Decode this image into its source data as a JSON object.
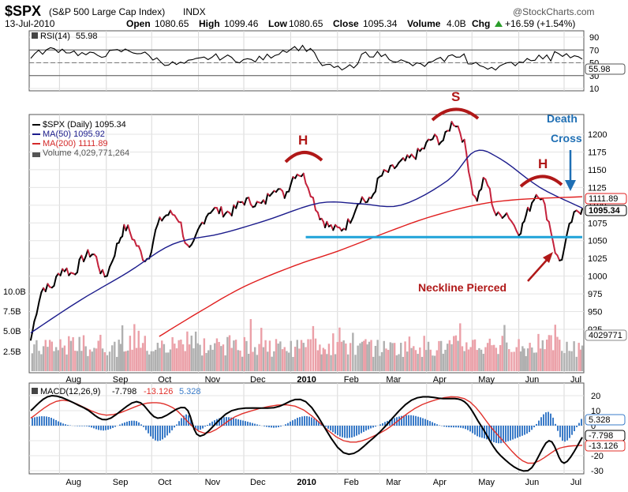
{
  "header": {
    "symbol": "$SPX",
    "name": "(S&P 500 Large Cap Index)",
    "exchange": "INDX",
    "credit": "@StockCharts.com",
    "date": "13-Jul-2010",
    "open_label": "Open",
    "open": "1080.65",
    "high_label": "High",
    "high": "1099.46",
    "low_label": "Low",
    "low": "1080.65",
    "close_label": "Close",
    "close": "1095.34",
    "volume_label": "Volume",
    "volume": "4.0B",
    "chg_label": "Chg",
    "chg": "+16.59 (+1.54%)",
    "chg_icon": "up-arrow-icon"
  },
  "rsi": {
    "label": "RSI(14)",
    "value": "55.98",
    "ticks": [
      "90",
      "70",
      "50",
      "30",
      "10"
    ],
    "levels": [
      70,
      30
    ]
  },
  "price_panel": {
    "legend": [
      {
        "text": "$SPX (Daily) 1095.34",
        "color": "#000000"
      },
      {
        "text": "MA(50) 1095.92",
        "color": "#1c1c8c"
      },
      {
        "text": "MA(200) 1111.89",
        "color": "#d42a2a"
      },
      {
        "text": "Volume 4,029,771,264",
        "color": "#555555"
      }
    ],
    "price_ticks": [
      "1200",
      "1175",
      "1150",
      "1125",
      "1100",
      "1075",
      "1050",
      "1025",
      "1000",
      "975",
      "950",
      "925"
    ],
    "volume_ticks": [
      "10.0B",
      "7.5B",
      "5.0B",
      "2.5B"
    ],
    "tag_ma200": "1111.89",
    "tag_close": "1095.34",
    "tag_volume": "4029771",
    "neckline": 1055
  },
  "annotations": {
    "left_head": "H",
    "shoulder": "S",
    "right_head": "H",
    "death_cross_line1": "Death",
    "death_cross_line2": "Cross",
    "neckline": "Neckline Pierced"
  },
  "macd": {
    "label": "MACD(12,26,9)",
    "macd": "-7.798",
    "signal": "-13.126",
    "hist": "5.328",
    "ticks": [
      "20",
      "10",
      "0",
      "-10",
      "-20",
      "-30"
    ]
  },
  "x_axis": {
    "labels": [
      "Aug",
      "Sep",
      "Oct",
      "Nov",
      "Dec",
      "2010",
      "Feb",
      "Mar",
      "Apr",
      "May",
      "Jun",
      "Jul"
    ]
  },
  "colors": {
    "price_up": "#000000",
    "price_down": "#c4223c",
    "ma50": "#1c1c8c",
    "ma200": "#e01e1e",
    "neckline": "#1fa3d9",
    "annot_red": "#b01818",
    "annot_blue": "#1f6fb4",
    "macd": "#000000",
    "signal": "#e0302a",
    "hist": "#3a7bc8",
    "vol_up": "#b0b0b0",
    "vol_down": "#eba0a8"
  },
  "chart_data": {
    "type": "line",
    "series": [
      {
        "name": "$SPX (Daily)",
        "x": [
          "2009-07-13",
          "2009-07-20",
          "2009-07-27",
          "2009-08-03",
          "2009-08-10",
          "2009-08-17",
          "2009-08-24",
          "2009-08-31",
          "2009-09-08",
          "2009-09-14",
          "2009-09-21",
          "2009-09-28",
          "2009-10-05",
          "2009-10-12",
          "2009-10-19",
          "2009-10-26",
          "2009-11-02",
          "2009-11-09",
          "2009-11-16",
          "2009-11-23",
          "2009-11-30",
          "2009-12-07",
          "2009-12-14",
          "2009-12-21",
          "2009-12-28",
          "2010-01-04",
          "2010-01-11",
          "2010-01-19",
          "2010-01-25",
          "2010-02-01",
          "2010-02-08",
          "2010-02-16",
          "2010-02-22",
          "2010-03-01",
          "2010-03-08",
          "2010-03-15",
          "2010-03-22",
          "2010-03-29",
          "2010-04-05",
          "2010-04-12",
          "2010-04-19",
          "2010-04-26",
          "2010-05-03",
          "2010-05-10",
          "2010-05-17",
          "2010-05-24",
          "2010-06-01",
          "2010-06-07",
          "2010-06-14",
          "2010-06-21",
          "2010-06-28",
          "2010-07-06",
          "2010-07-13"
        ],
        "values": [
          910,
          978,
          985,
          1010,
          1004,
          1026,
          1030,
          1000,
          1042,
          1068,
          1044,
          1025,
          1071,
          1087,
          1080,
          1036,
          1069,
          1093,
          1091,
          1091,
          1105,
          1104,
          1102,
          1126,
          1115,
          1144,
          1136,
          1091,
          1073,
          1066,
          1075,
          1109,
          1105,
          1138,
          1149,
          1159,
          1167,
          1178,
          1194,
          1192,
          1217,
          1186,
          1110,
          1135,
          1087,
          1089,
          1064,
          1091,
          1117,
          1076,
          1022,
          1078,
          1095
        ]
      },
      {
        "name": "MA(50)",
        "x": [
          "2009-07-13",
          "2009-08-14",
          "2009-09-15",
          "2009-10-15",
          "2009-11-16",
          "2009-12-15",
          "2010-01-20",
          "2010-02-16",
          "2010-03-15",
          "2010-04-15",
          "2010-05-03",
          "2010-05-20",
          "2010-06-15",
          "2010-07-13"
        ],
        "values": [
          920,
          965,
          1005,
          1045,
          1060,
          1078,
          1103,
          1102,
          1100,
          1135,
          1176,
          1165,
          1125,
          1096
        ]
      },
      {
        "name": "MA(200)",
        "x": [
          "2009-10-06",
          "2009-11-02",
          "2009-12-01",
          "2010-01-04",
          "2010-02-01",
          "2010-03-01",
          "2010-04-01",
          "2010-05-03",
          "2010-06-01",
          "2010-07-13"
        ],
        "values": [
          915,
          950,
          985,
          1015,
          1035,
          1058,
          1082,
          1100,
          1108,
          1111.89
        ]
      },
      {
        "name": "MACD(12,26,9)",
        "x": [
          "2009-07-13",
          "2009-07-27",
          "2009-08-17",
          "2009-09-01",
          "2009-09-21",
          "2009-10-05",
          "2009-10-23",
          "2009-11-02",
          "2009-11-23",
          "2009-12-21",
          "2010-01-11",
          "2010-02-05",
          "2010-02-25",
          "2010-03-22",
          "2010-04-12",
          "2010-04-26",
          "2010-05-07",
          "2010-05-20",
          "2010-06-07",
          "2010-06-21",
          "2010-07-01",
          "2010-07-13"
        ],
        "values": [
          10,
          20,
          12,
          4,
          16,
          5,
          12,
          -7,
          10,
          12,
          16,
          -18,
          -8,
          17,
          18,
          16,
          0,
          -20,
          -30,
          -10,
          -25,
          -7.798
        ]
      },
      {
        "name": "Signal",
        "x": [
          "2009-07-13",
          "2009-08-03",
          "2009-09-01",
          "2009-09-28",
          "2009-10-15",
          "2009-11-05",
          "2009-11-30",
          "2010-01-04",
          "2010-02-05",
          "2010-03-01",
          "2010-03-29",
          "2010-04-26",
          "2010-05-17",
          "2010-06-07",
          "2010-06-28",
          "2010-07-13"
        ],
        "values": [
          5,
          17,
          7,
          15,
          12,
          -5,
          8,
          13,
          -10,
          -5,
          14,
          18,
          -5,
          -25,
          -15,
          -13.126
        ]
      }
    ]
  }
}
